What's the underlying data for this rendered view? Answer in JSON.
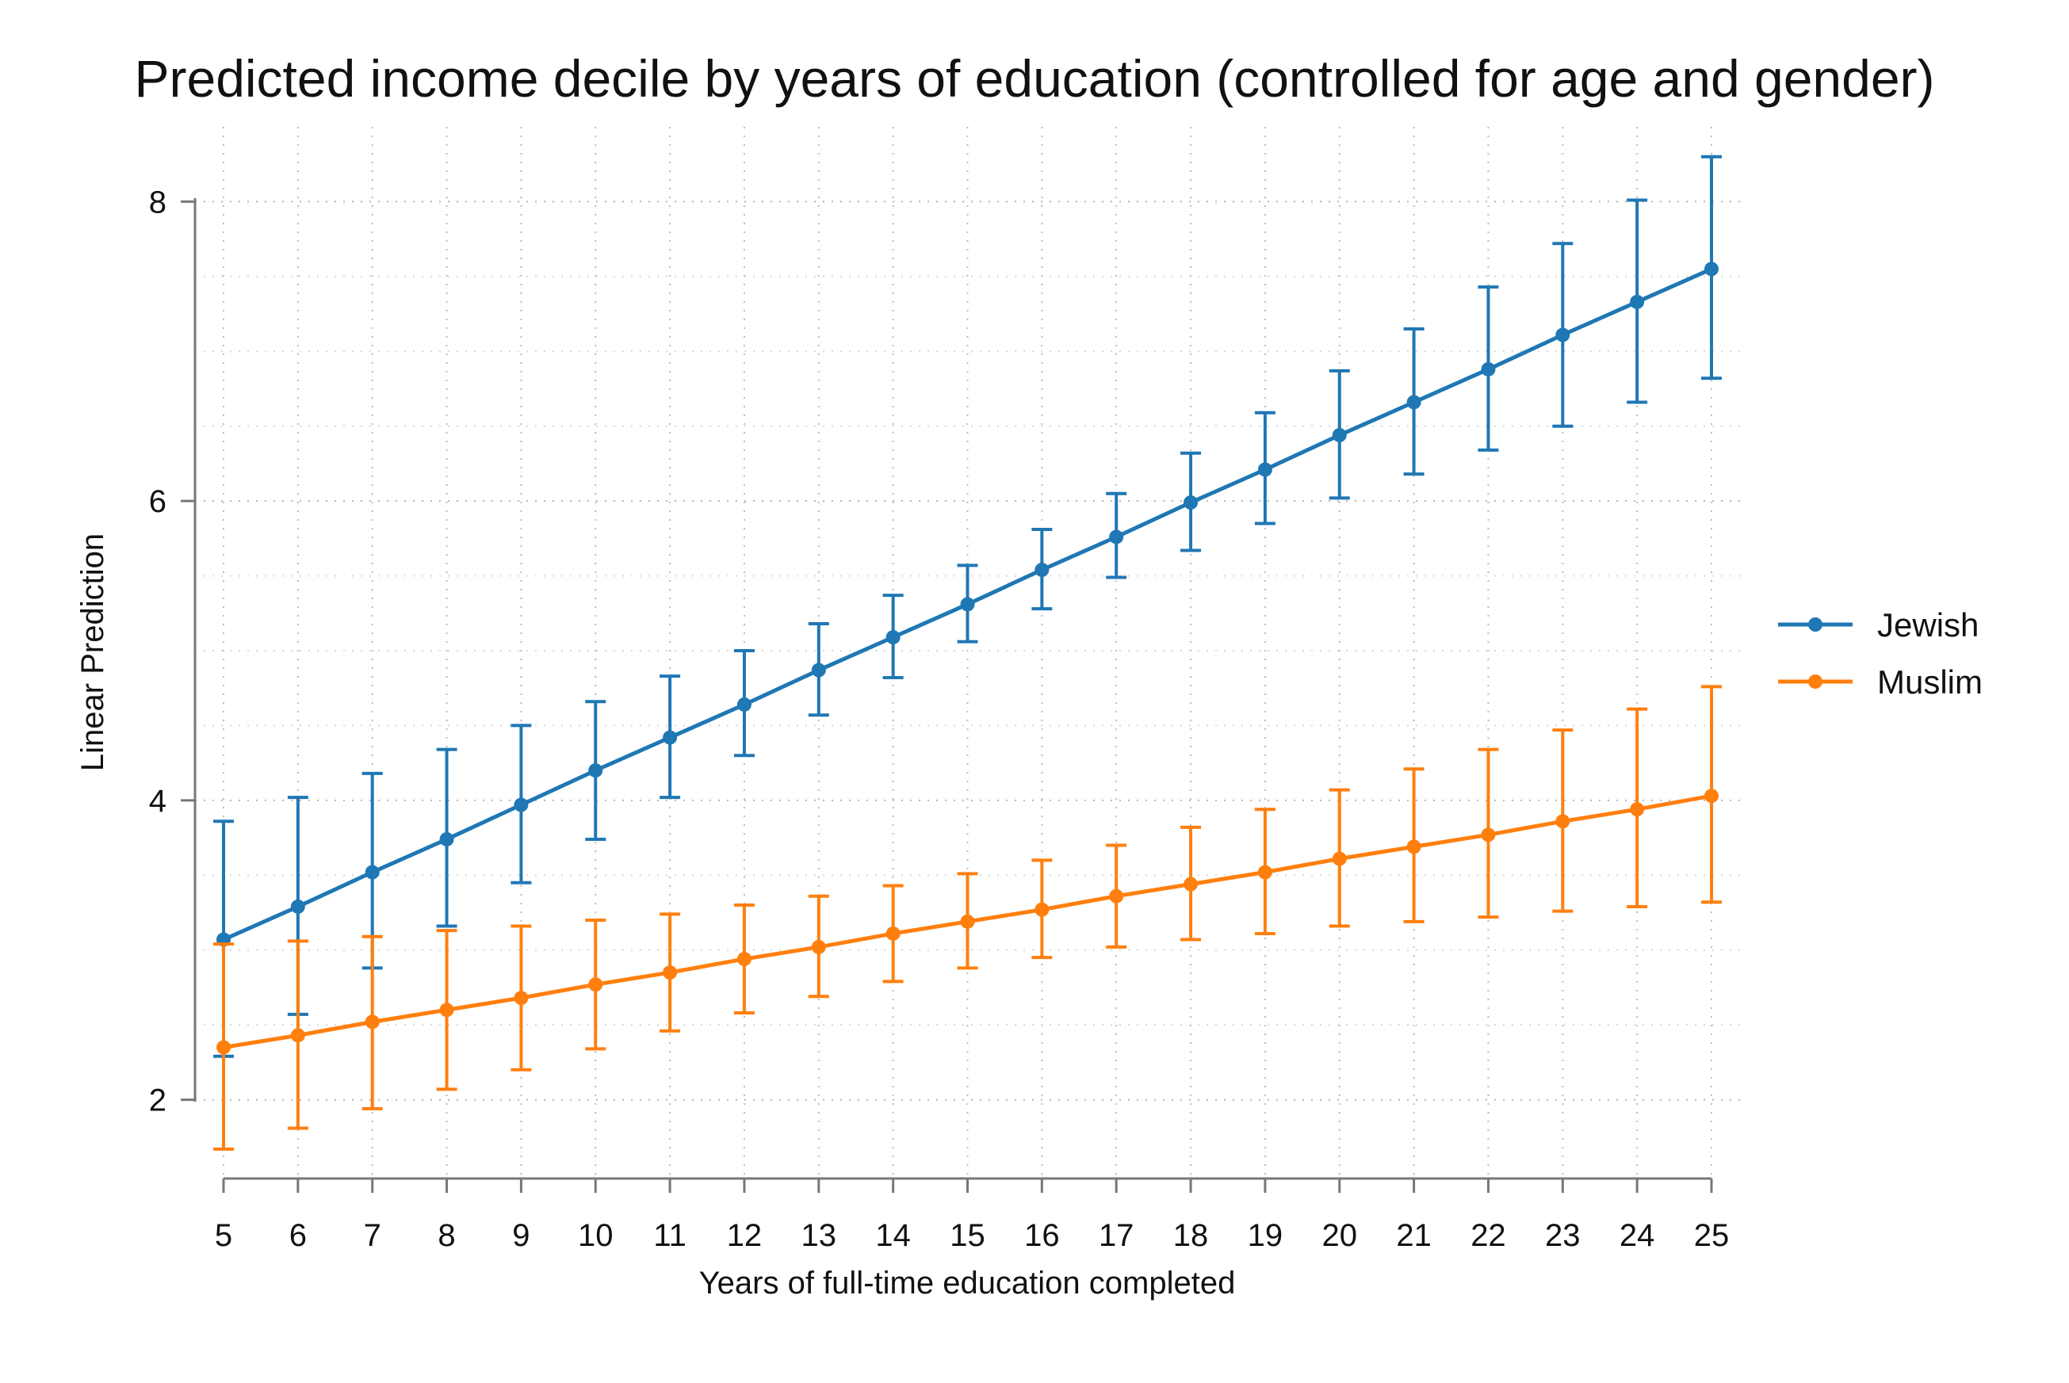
{
  "chart_data": {
    "type": "line",
    "title": "Predicted income decile by years of education (controlled for age and gender)",
    "xlabel": "Years of full-time education completed",
    "ylabel": "Linear Prediction",
    "x": [
      5,
      6,
      7,
      8,
      9,
      10,
      11,
      12,
      13,
      14,
      15,
      16,
      17,
      18,
      19,
      20,
      21,
      22,
      23,
      24,
      25
    ],
    "xlim": [
      5,
      25
    ],
    "ylim": [
      1.5,
      8.5
    ],
    "yticks": [
      2,
      4,
      6,
      8
    ],
    "grid": true,
    "legend_position": "right",
    "series": [
      {
        "name": "Jewish",
        "color": "#1f77b4",
        "values": [
          3.07,
          3.29,
          3.52,
          3.74,
          3.97,
          4.2,
          4.42,
          4.64,
          4.87,
          5.09,
          5.31,
          5.54,
          5.76,
          5.99,
          6.21,
          6.44,
          6.66,
          6.88,
          7.11,
          7.33,
          7.55
        ],
        "lower": [
          2.29,
          2.57,
          2.88,
          3.16,
          3.45,
          3.74,
          4.02,
          4.3,
          4.57,
          4.82,
          5.06,
          5.28,
          5.49,
          5.67,
          5.85,
          6.02,
          6.18,
          6.34,
          6.5,
          6.66,
          6.82
        ],
        "upper": [
          3.86,
          4.02,
          4.18,
          4.34,
          4.5,
          4.66,
          4.83,
          5.0,
          5.18,
          5.37,
          5.57,
          5.81,
          6.05,
          6.32,
          6.59,
          6.87,
          7.15,
          7.43,
          7.72,
          8.01,
          8.3
        ]
      },
      {
        "name": "Muslim",
        "color": "#ff7f0e",
        "values": [
          2.35,
          2.43,
          2.52,
          2.6,
          2.68,
          2.77,
          2.85,
          2.94,
          3.02,
          3.11,
          3.19,
          3.27,
          3.36,
          3.44,
          3.52,
          3.61,
          3.69,
          3.77,
          3.86,
          3.94,
          4.03
        ],
        "lower": [
          1.67,
          1.81,
          1.94,
          2.07,
          2.2,
          2.34,
          2.46,
          2.58,
          2.69,
          2.79,
          2.88,
          2.95,
          3.02,
          3.07,
          3.11,
          3.16,
          3.19,
          3.22,
          3.26,
          3.29,
          3.32
        ],
        "upper": [
          3.04,
          3.06,
          3.09,
          3.13,
          3.16,
          3.2,
          3.24,
          3.3,
          3.36,
          3.43,
          3.51,
          3.6,
          3.7,
          3.82,
          3.94,
          4.07,
          4.21,
          4.34,
          4.47,
          4.61,
          4.76
        ]
      }
    ]
  }
}
